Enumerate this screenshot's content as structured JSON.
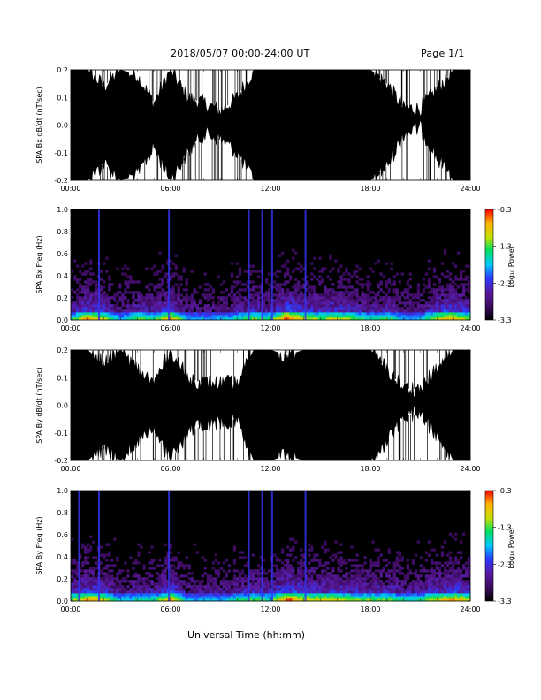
{
  "header": {
    "title": "2018/05/07  00:00-24:00 UT",
    "page": "Page 1/1"
  },
  "footer": {
    "xaxis_label": "Universal Time (hh:mm)"
  },
  "colors": {
    "background": "#ffffff",
    "trace": "#000000",
    "colormap": [
      "#000000",
      "#3a0a5c",
      "#5a1aa0",
      "#2a3aff",
      "#00c8ff",
      "#00e060",
      "#c8e000",
      "#ffb000",
      "#ff0000"
    ]
  },
  "chart_data": [
    {
      "type": "area",
      "ylabel": "SPA Bx dB/dt (nT/sec)",
      "xlim": [
        "00:00",
        "24:00"
      ],
      "ylim": [
        -0.2,
        0.2
      ],
      "yticks": [
        "-0.2",
        "-0.1",
        "0.0",
        "0.1",
        "0.2"
      ],
      "xticks": [
        "00:00",
        "06:00",
        "12:00",
        "18:00",
        "24:00"
      ],
      "x_hours": [
        0,
        1,
        2,
        3,
        4,
        5,
        6,
        7,
        8,
        9,
        10,
        11,
        12,
        13,
        14,
        15,
        16,
        17,
        18,
        19,
        20,
        21,
        22,
        23,
        24
      ],
      "upper_envelope": [
        0.2,
        0.2,
        0.14,
        0.2,
        0.18,
        0.08,
        0.2,
        0.1,
        0.08,
        0.05,
        0.1,
        0.2,
        0.2,
        0.2,
        0.2,
        0.2,
        0.2,
        0.2,
        0.2,
        0.15,
        0.06,
        0.06,
        0.13,
        0.2,
        0.2
      ],
      "lower_envelope": [
        -0.2,
        -0.2,
        -0.14,
        -0.2,
        -0.18,
        -0.08,
        -0.2,
        -0.1,
        -0.03,
        -0.05,
        -0.1,
        -0.2,
        -0.2,
        -0.2,
        -0.2,
        -0.2,
        -0.2,
        -0.2,
        -0.2,
        -0.15,
        -0.03,
        -0.01,
        -0.12,
        -0.2,
        -0.2
      ]
    },
    {
      "type": "heatmap",
      "ylabel": "SPA Bx Freq (Hz)",
      "xlim": [
        "00:00",
        "24:00"
      ],
      "ylim": [
        0.0,
        1.0
      ],
      "yticks": [
        "0.0",
        "0.2",
        "0.4",
        "0.6",
        "0.8",
        "1.0"
      ],
      "xticks": [
        "00:00",
        "06:00",
        "12:00",
        "18:00",
        "24:00"
      ],
      "colorbar": {
        "label": "Log₁₀ Power",
        "ticks": [
          "-0.3",
          "-1.3",
          "-2.3",
          "-3.3"
        ],
        "range": [
          -3.3,
          -0.3
        ]
      },
      "activity_hours": [
        0,
        1,
        2,
        3,
        4,
        5,
        6,
        7,
        8,
        9,
        10,
        11,
        12,
        13,
        14,
        15,
        16,
        17,
        18,
        19,
        20,
        21,
        22,
        23,
        24
      ],
      "activity_level": [
        0.6,
        0.9,
        0.8,
        0.5,
        0.7,
        0.6,
        0.9,
        0.5,
        0.5,
        0.5,
        0.6,
        0.7,
        0.6,
        1.0,
        0.8,
        0.7,
        0.8,
        0.7,
        0.6,
        0.7,
        0.5,
        0.5,
        0.8,
        0.9,
        0.7
      ],
      "line_hours": [
        1.7,
        5.9,
        10.7,
        11.5,
        12.1,
        14.1
      ]
    },
    {
      "type": "area",
      "ylabel": "SPA By dB/dt (nT/sec)",
      "xlim": [
        "00:00",
        "24:00"
      ],
      "ylim": [
        -0.2,
        0.2
      ],
      "yticks": [
        "-0.2",
        "-0.1",
        "0.0",
        "0.1",
        "0.2"
      ],
      "xticks": [
        "00:00",
        "06:00",
        "12:00",
        "18:00",
        "24:00"
      ],
      "x_hours": [
        0,
        1,
        2,
        3,
        4,
        5,
        6,
        7,
        8,
        9,
        10,
        11,
        12,
        13,
        14,
        15,
        16,
        17,
        18,
        19,
        20,
        21,
        22,
        23,
        24
      ],
      "upper_envelope": [
        0.2,
        0.2,
        0.15,
        0.2,
        0.13,
        0.08,
        0.2,
        0.1,
        0.08,
        0.08,
        0.08,
        0.2,
        0.2,
        0.18,
        0.2,
        0.2,
        0.2,
        0.2,
        0.2,
        0.13,
        0.06,
        0.06,
        0.13,
        0.2,
        0.2
      ],
      "lower_envelope": [
        -0.2,
        -0.2,
        -0.15,
        -0.2,
        -0.13,
        -0.08,
        -0.2,
        -0.1,
        -0.07,
        -0.06,
        -0.05,
        -0.2,
        -0.2,
        -0.18,
        -0.2,
        -0.2,
        -0.2,
        -0.2,
        -0.2,
        -0.13,
        -0.04,
        -0.03,
        -0.11,
        -0.2,
        -0.2
      ]
    },
    {
      "type": "heatmap",
      "ylabel": "SPA By Freq (Hz)",
      "xlim": [
        "00:00",
        "24:00"
      ],
      "ylim": [
        0.0,
        1.0
      ],
      "yticks": [
        "0.0",
        "0.2",
        "0.4",
        "0.6",
        "0.8",
        "1.0"
      ],
      "xticks": [
        "00:00",
        "06:00",
        "12:00",
        "18:00",
        "24:00"
      ],
      "colorbar": {
        "label": "Log₁₀ Power",
        "ticks": [
          "-0.3",
          "-1.3",
          "-2.3",
          "-3.3"
        ],
        "range": [
          -3.3,
          -0.3
        ]
      },
      "activity_hours": [
        0,
        1,
        2,
        3,
        4,
        5,
        6,
        7,
        8,
        9,
        10,
        11,
        12,
        13,
        14,
        15,
        16,
        17,
        18,
        19,
        20,
        21,
        22,
        23,
        24
      ],
      "activity_level": [
        0.7,
        0.9,
        0.8,
        0.5,
        0.6,
        0.6,
        0.9,
        0.5,
        0.5,
        0.5,
        0.6,
        0.7,
        0.6,
        1.0,
        0.8,
        0.8,
        0.8,
        0.7,
        0.7,
        0.7,
        0.6,
        0.6,
        0.8,
        0.9,
        0.8
      ],
      "line_hours": [
        0.5,
        1.7,
        5.9,
        10.7,
        11.5,
        12.1,
        14.1
      ]
    }
  ]
}
